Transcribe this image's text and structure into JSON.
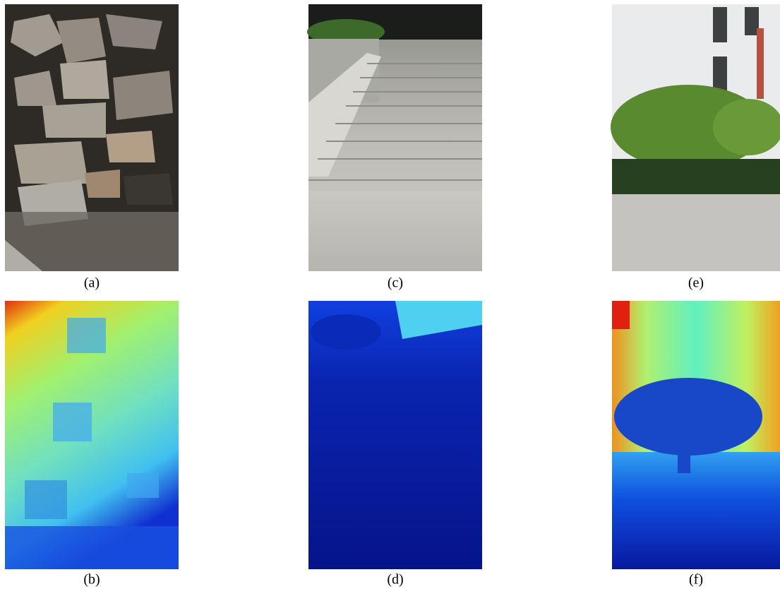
{
  "figure": {
    "rows": [
      [
        "(a)",
        "(c)",
        "(e)"
      ],
      [
        "(b)",
        "(d)",
        "(f)"
      ]
    ]
  }
}
